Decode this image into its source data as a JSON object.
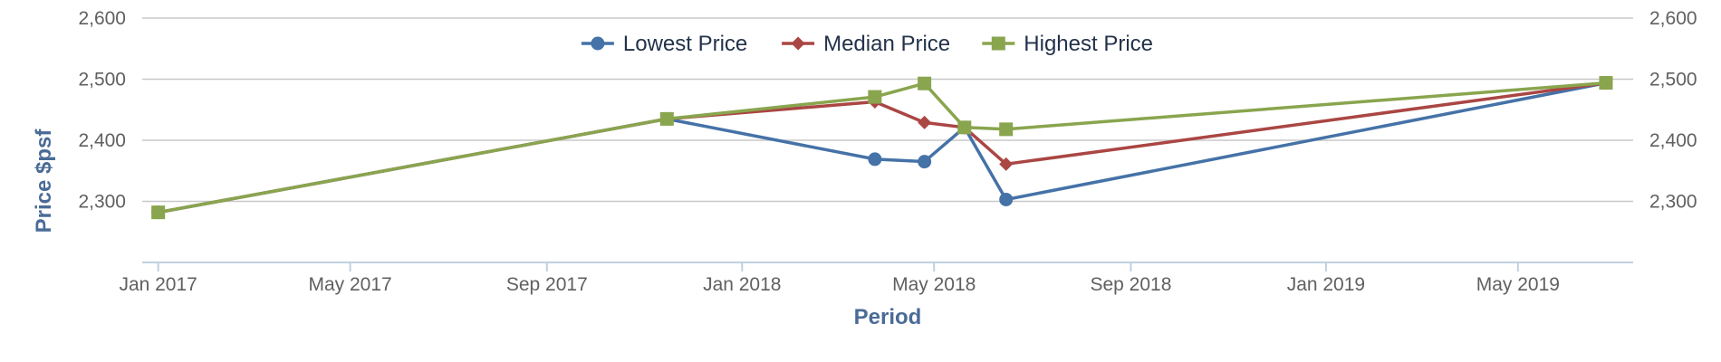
{
  "chart_data": {
    "type": "line",
    "xlabel": "Period",
    "ylabel": "Price $psf",
    "x_ticks": [
      "Jan 2017",
      "May 2017",
      "Sep 2017",
      "Jan 2018",
      "May 2018",
      "Sep 2018",
      "Jan 2019",
      "May 2019"
    ],
    "x_range": [
      "2016-12-22",
      "2019-07-12"
    ],
    "y_ticks": [
      2300,
      2400,
      2500,
      2600
    ],
    "y_tick_labels": [
      "2,300",
      "2,400",
      "2,500",
      "2,600"
    ],
    "ylim": [
      2200,
      2600
    ],
    "grid": true,
    "legend_position": "top-center",
    "series": [
      {
        "name": "Lowest Price",
        "color": "#4572a7",
        "marker": "circle",
        "points": [
          {
            "x": "2017-01-01",
            "y": 2282
          },
          {
            "x": "2017-11-15",
            "y": 2435
          },
          {
            "x": "2018-03-25",
            "y": 2369
          },
          {
            "x": "2018-04-25",
            "y": 2365
          },
          {
            "x": "2018-05-20",
            "y": 2421
          },
          {
            "x": "2018-06-15",
            "y": 2303
          },
          {
            "x": "2019-06-25",
            "y": 2494
          }
        ]
      },
      {
        "name": "Median Price",
        "color": "#aa4643",
        "marker": "diamond",
        "points": [
          {
            "x": "2017-01-01",
            "y": 2282
          },
          {
            "x": "2017-11-15",
            "y": 2435
          },
          {
            "x": "2018-03-25",
            "y": 2463
          },
          {
            "x": "2018-04-25",
            "y": 2429
          },
          {
            "x": "2018-05-20",
            "y": 2421
          },
          {
            "x": "2018-06-15",
            "y": 2361
          },
          {
            "x": "2019-06-25",
            "y": 2494
          }
        ]
      },
      {
        "name": "Highest Price",
        "color": "#89a54e",
        "marker": "square",
        "points": [
          {
            "x": "2017-01-01",
            "y": 2282
          },
          {
            "x": "2017-11-15",
            "y": 2435
          },
          {
            "x": "2018-03-25",
            "y": 2471
          },
          {
            "x": "2018-04-25",
            "y": 2493
          },
          {
            "x": "2018-05-20",
            "y": 2421
          },
          {
            "x": "2018-06-15",
            "y": 2418
          },
          {
            "x": "2019-06-25",
            "y": 2494
          }
        ]
      }
    ]
  }
}
